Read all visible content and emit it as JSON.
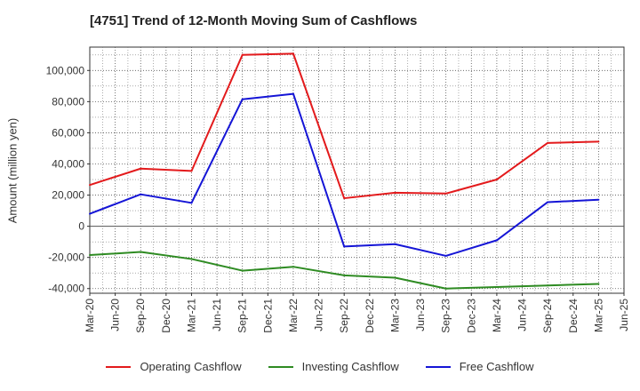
{
  "chart_data": {
    "type": "line",
    "title": "[4751]  Trend of 12-Month Moving Sum of Cashflows",
    "ylabel": "Amount (million yen)",
    "xlabel": "",
    "x_ticks": [
      "Mar-20",
      "Jun-20",
      "Sep-20",
      "Dec-20",
      "Mar-21",
      "Jun-21",
      "Sep-21",
      "Dec-21",
      "Mar-22",
      "Jun-22",
      "Sep-22",
      "Dec-22",
      "Mar-23",
      "Jun-23",
      "Sep-23",
      "Dec-23",
      "Mar-24",
      "Jun-24",
      "Sep-24",
      "Dec-24",
      "Mar-25",
      "Jun-25"
    ],
    "y_ticks": [
      -40000,
      -20000,
      0,
      20000,
      40000,
      60000,
      80000,
      100000
    ],
    "y_tick_labels": [
      "-40,000",
      "-20,000",
      "0",
      "20,000",
      "40,000",
      "60,000",
      "80,000",
      "100,000"
    ],
    "ylim": [
      -43000,
      115000
    ],
    "grid": true,
    "legend_position": "bottom",
    "series": [
      {
        "name": "Operating Cashflow",
        "color": "#e31a1c",
        "x": [
          "Mar-20",
          "Sep-20",
          "Mar-21",
          "Sep-21",
          "Mar-22",
          "Sep-22",
          "Mar-23",
          "Sep-23",
          "Mar-24",
          "Sep-24",
          "Mar-25"
        ],
        "values": [
          26500,
          37000,
          35500,
          110000,
          110800,
          18000,
          21500,
          21000,
          30000,
          53500,
          54300
        ]
      },
      {
        "name": "Investing Cashflow",
        "color": "#2e8b22",
        "x": [
          "Mar-20",
          "Sep-20",
          "Mar-21",
          "Sep-21",
          "Mar-22",
          "Sep-22",
          "Mar-23",
          "Sep-23",
          "Mar-24",
          "Sep-24",
          "Mar-25"
        ],
        "values": [
          -18500,
          -16500,
          -21000,
          -28500,
          -26000,
          -31500,
          -33000,
          -40000,
          -39000,
          -38000,
          -37000
        ]
      },
      {
        "name": "Free Cashflow",
        "color": "#1515d6",
        "x": [
          "Mar-20",
          "Sep-20",
          "Mar-21",
          "Sep-21",
          "Mar-22",
          "Sep-22",
          "Mar-23",
          "Sep-23",
          "Mar-24",
          "Sep-24",
          "Mar-25"
        ],
        "values": [
          8000,
          20500,
          15000,
          81500,
          85000,
          -13000,
          -11500,
          -19000,
          -9000,
          15500,
          17000
        ]
      }
    ]
  }
}
